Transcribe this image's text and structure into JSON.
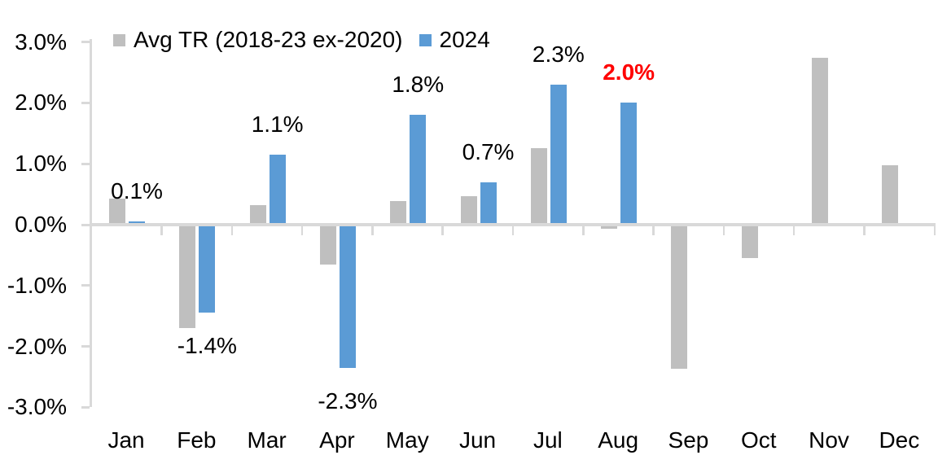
{
  "colors": {
    "avg_series": "#BFBFBF",
    "series_2024": "#5B9BD5",
    "axis": "#D9D9D9",
    "text": "#000000",
    "highlight": "#FF0000"
  },
  "chart_data": {
    "type": "bar",
    "title": "",
    "xlabel": "",
    "ylabel": "",
    "categories": [
      "Jan",
      "Feb",
      "Mar",
      "Apr",
      "May",
      "Jun",
      "Jul",
      "Aug",
      "Sep",
      "Oct",
      "Nov",
      "Dec"
    ],
    "series": [
      {
        "name": "Avg TR (2018-23 ex-2020)",
        "color": "#BFBFBF",
        "values": [
          0.43,
          -1.7,
          0.32,
          -0.66,
          0.39,
          0.47,
          1.26,
          -0.07,
          -2.36,
          -0.55,
          2.74,
          0.97
        ]
      },
      {
        "name": "2024",
        "color": "#5B9BD5",
        "values": [
          0.06,
          -1.45,
          1.15,
          -2.35,
          1.8,
          0.7,
          2.3,
          2.0,
          null,
          null,
          null,
          null
        ]
      }
    ],
    "data_labels": [
      {
        "month": 0,
        "text": "0.1%",
        "color": "#000000",
        "bold": false
      },
      {
        "month": 1,
        "text": "-1.4%",
        "color": "#000000",
        "bold": false
      },
      {
        "month": 2,
        "text": "1.1%",
        "color": "#000000",
        "bold": false
      },
      {
        "month": 3,
        "text": "-2.3%",
        "color": "#000000",
        "bold": false
      },
      {
        "month": 4,
        "text": "1.8%",
        "color": "#000000",
        "bold": false
      },
      {
        "month": 5,
        "text": "0.7%",
        "color": "#000000",
        "bold": false
      },
      {
        "month": 6,
        "text": "2.3%",
        "color": "#000000",
        "bold": false
      },
      {
        "month": 7,
        "text": "2.0%",
        "color": "#FF0000",
        "bold": true
      }
    ],
    "y_tick_labels": [
      "3.0%",
      "2.0%",
      "1.0%",
      "0.0%",
      "-1.0%",
      "-2.0%",
      "-3.0%"
    ],
    "y_tick_values": [
      3.0,
      2.0,
      1.0,
      0.0,
      -1.0,
      -2.0,
      -3.0
    ],
    "ylim": [
      -3.0,
      3.0
    ],
    "grid": false,
    "legend_position": "top"
  }
}
